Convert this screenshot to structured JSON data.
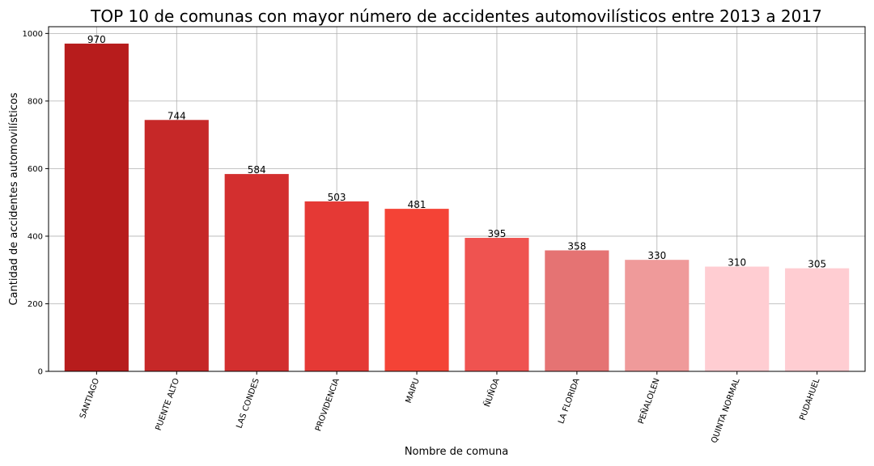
{
  "chart_data": {
    "type": "bar",
    "title": "TOP 10 de comunas con mayor número de accidentes automovilísticos entre 2013 a 2017",
    "xlabel": "Nombre de comuna",
    "ylabel": "Cantidad de accidentes automovilísticos",
    "categories": [
      "SANTIAGO",
      "PUENTE ALTO",
      "LAS CONDES",
      "PROVIDENCIA",
      "MAIPU",
      "ÑUÑOA",
      "LA FLORIDA",
      "PEÑALOLEN",
      "QUINTA NORMAL",
      "PUDAHUEL"
    ],
    "values": [
      970,
      744,
      584,
      503,
      481,
      395,
      358,
      330,
      310,
      305
    ],
    "colors": [
      "#b71c1c",
      "#c62828",
      "#d32f2f",
      "#e53935",
      "#f44336",
      "#ef5350",
      "#e57373",
      "#ef9a9a",
      "#ffcdd2",
      "#ffcdd2"
    ],
    "ylim": [
      0,
      1020
    ],
    "yticks": [
      0,
      200,
      400,
      600,
      800,
      1000
    ],
    "grid": true,
    "legend": "none"
  }
}
